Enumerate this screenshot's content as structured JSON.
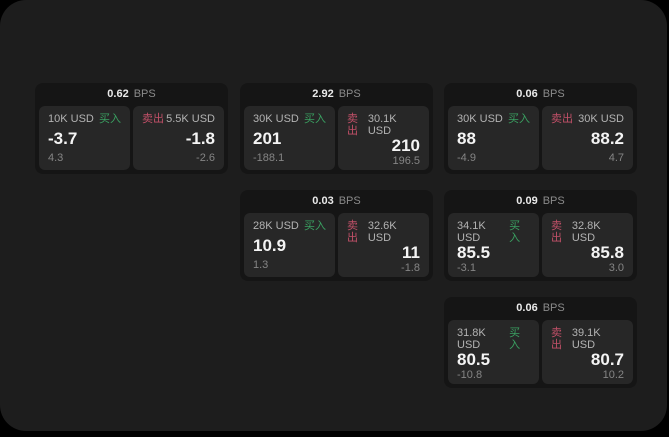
{
  "labels": {
    "bps_unit": "BPS",
    "buy": "买入",
    "sell": "卖出"
  },
  "colors": {
    "surface_bg": "#1d1d1d",
    "card_bg": "#151515",
    "panel_bg": "#272727",
    "buy_green": "#3aa061",
    "sell_red": "#c25068",
    "price_white": "#f4f4f4",
    "muted_gray": "#858585"
  },
  "cards": [
    {
      "bps": "0.62",
      "buy": {
        "size": "10K USD",
        "price": "-3.7",
        "sub": "4.3"
      },
      "sell": {
        "size": "5.5K USD",
        "price": "-1.8",
        "sub": "-2.6"
      }
    },
    {
      "bps": "2.92",
      "buy": {
        "size": "30K USD",
        "price": "201",
        "sub": "-188.1"
      },
      "sell": {
        "size": "30.1K USD",
        "price": "210",
        "sub": "196.5"
      }
    },
    {
      "bps": "0.06",
      "buy": {
        "size": "30K USD",
        "price": "88",
        "sub": "-4.9"
      },
      "sell": {
        "size": "30K USD",
        "price": "88.2",
        "sub": "4.7"
      }
    },
    {
      "bps": "0.03",
      "buy": {
        "size": "28K USD",
        "price": "10.9",
        "sub": "1.3"
      },
      "sell": {
        "size": "32.6K USD",
        "price": "11",
        "sub": "-1.8"
      }
    },
    {
      "bps": "0.09",
      "buy": {
        "size": "34.1K USD",
        "price": "85.5",
        "sub": "-3.1"
      },
      "sell": {
        "size": "32.8K USD",
        "price": "85.8",
        "sub": "3.0"
      }
    },
    {
      "bps": "0.06",
      "buy": {
        "size": "31.8K USD",
        "price": "80.5",
        "sub": "-10.8"
      },
      "sell": {
        "size": "39.1K USD",
        "price": "80.7",
        "sub": "10.2"
      }
    }
  ]
}
